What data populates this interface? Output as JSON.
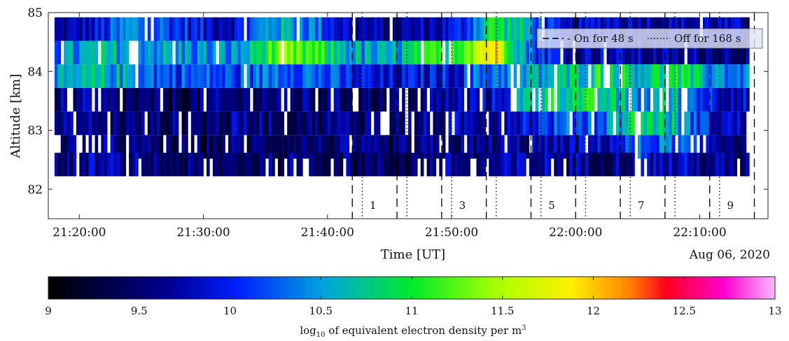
{
  "chart_data": [
    {
      "type": "heatmap",
      "title": "",
      "xlabel": "Time [UT]",
      "ylabel": "Altitude [km]",
      "date_label": "Aug 06, 2020",
      "x_range": [
        "21:17:30",
        "22:15:30"
      ],
      "y_range": [
        81.5,
        85
      ],
      "x_ticks": [
        "21:20:00",
        "21:30:00",
        "21:40:00",
        "21:50:00",
        "22:00:00",
        "22:10:00"
      ],
      "y_ticks": [
        "82",
        "83",
        "84",
        "85"
      ],
      "altitude_rows_km": [
        84.72,
        84.32,
        83.92,
        83.52,
        83.12,
        82.72,
        82.42
      ],
      "time_range_data": [
        "21:18:00",
        "22:14:00"
      ],
      "colorscale": "jet-like black→blue→green→yellow→red→magenta→pink",
      "value_range": [
        9,
        13
      ],
      "row_profiles_log10": [
        [
          9.6,
          9.8,
          10.4,
          10.2,
          9.9,
          9.9,
          10.6,
          10.4,
          9.8,
          9.6,
          9.7,
          9.9,
          11.0,
          10.5,
          9.6,
          9.9,
          9.8,
          9.7,
          9.8,
          9.6
        ],
        [
          10.3,
          10.5,
          10.6,
          10.5,
          10.4,
          10.4,
          11.2,
          11.1,
          10.6,
          10.4,
          10.8,
          11.2,
          12.0,
          10.3,
          9.8,
          9.8,
          9.7,
          9.6,
          9.7,
          9.6
        ],
        [
          10.3,
          10.6,
          10.5,
          10.2,
          10.2,
          10.1,
          10.4,
          10.3,
          10.0,
          9.8,
          9.9,
          10.0,
          10.4,
          10.5,
          10.6,
          11.0,
          10.7,
          10.9,
          10.5,
          10.3
        ],
        [
          9.6,
          9.6,
          9.4,
          9.4,
          9.5,
          9.5,
          9.6,
          9.5,
          9.5,
          9.5,
          9.6,
          9.7,
          9.8,
          10.7,
          10.9,
          10.8,
          10.4,
          10.6,
          10.0,
          9.8
        ],
        [
          9.5,
          9.6,
          9.5,
          9.5,
          9.5,
          9.6,
          9.6,
          9.5,
          9.6,
          9.6,
          9.6,
          9.7,
          9.8,
          10.0,
          10.2,
          10.3,
          10.9,
          10.6,
          9.9,
          9.7
        ],
        [
          9.5,
          9.6,
          9.5,
          9.4,
          9.4,
          9.5,
          9.5,
          9.5,
          9.5,
          9.4,
          9.5,
          9.5,
          9.6,
          9.6,
          9.7,
          9.8,
          10.2,
          10.3,
          9.8,
          9.6
        ],
        [
          9.5,
          9.7,
          9.6,
          9.5,
          9.4,
          9.5,
          9.5,
          9.6,
          9.5,
          9.4,
          9.5,
          9.6,
          9.6,
          9.7,
          9.7,
          9.6,
          9.7,
          9.8,
          9.6,
          9.5
        ]
      ],
      "on_lines": [
        "21:42:00",
        "21:45:36",
        "21:49:12",
        "21:52:48",
        "21:56:24",
        "22:00:00",
        "22:03:36",
        "22:07:12",
        "22:10:48",
        "22:14:24"
      ],
      "off_lines": [
        "21:42:48",
        "21:46:24",
        "21:50:00",
        "21:53:36",
        "21:57:12",
        "22:00:48",
        "22:04:24",
        "22:08:00",
        "22:11:36"
      ],
      "period_labels": [
        {
          "text": "1",
          "x": "21:43:40"
        },
        {
          "text": "3",
          "x": "21:50:52"
        },
        {
          "text": "5",
          "x": "21:58:04"
        },
        {
          "text": "7",
          "x": "22:05:16"
        },
        {
          "text": "9",
          "x": "22:12:28"
        }
      ],
      "legend": {
        "placement": "top-right",
        "entries": [
          {
            "style": "dashed",
            "label": "- On for 48 s"
          },
          {
            "style": "dotted",
            "label": "Off for 168 s"
          }
        ]
      }
    },
    {
      "type": "colorbar",
      "title": "log10 of equivalent electron density per m3",
      "title_parts": {
        "base": "log",
        "sub": "10",
        "mid": " of equivalent electron density per m",
        "sup": "3"
      },
      "range": [
        9,
        13
      ],
      "ticks": [
        "9",
        "9.5",
        "10",
        "10.5",
        "11",
        "11.5",
        "12",
        "12.5",
        "13"
      ]
    }
  ]
}
